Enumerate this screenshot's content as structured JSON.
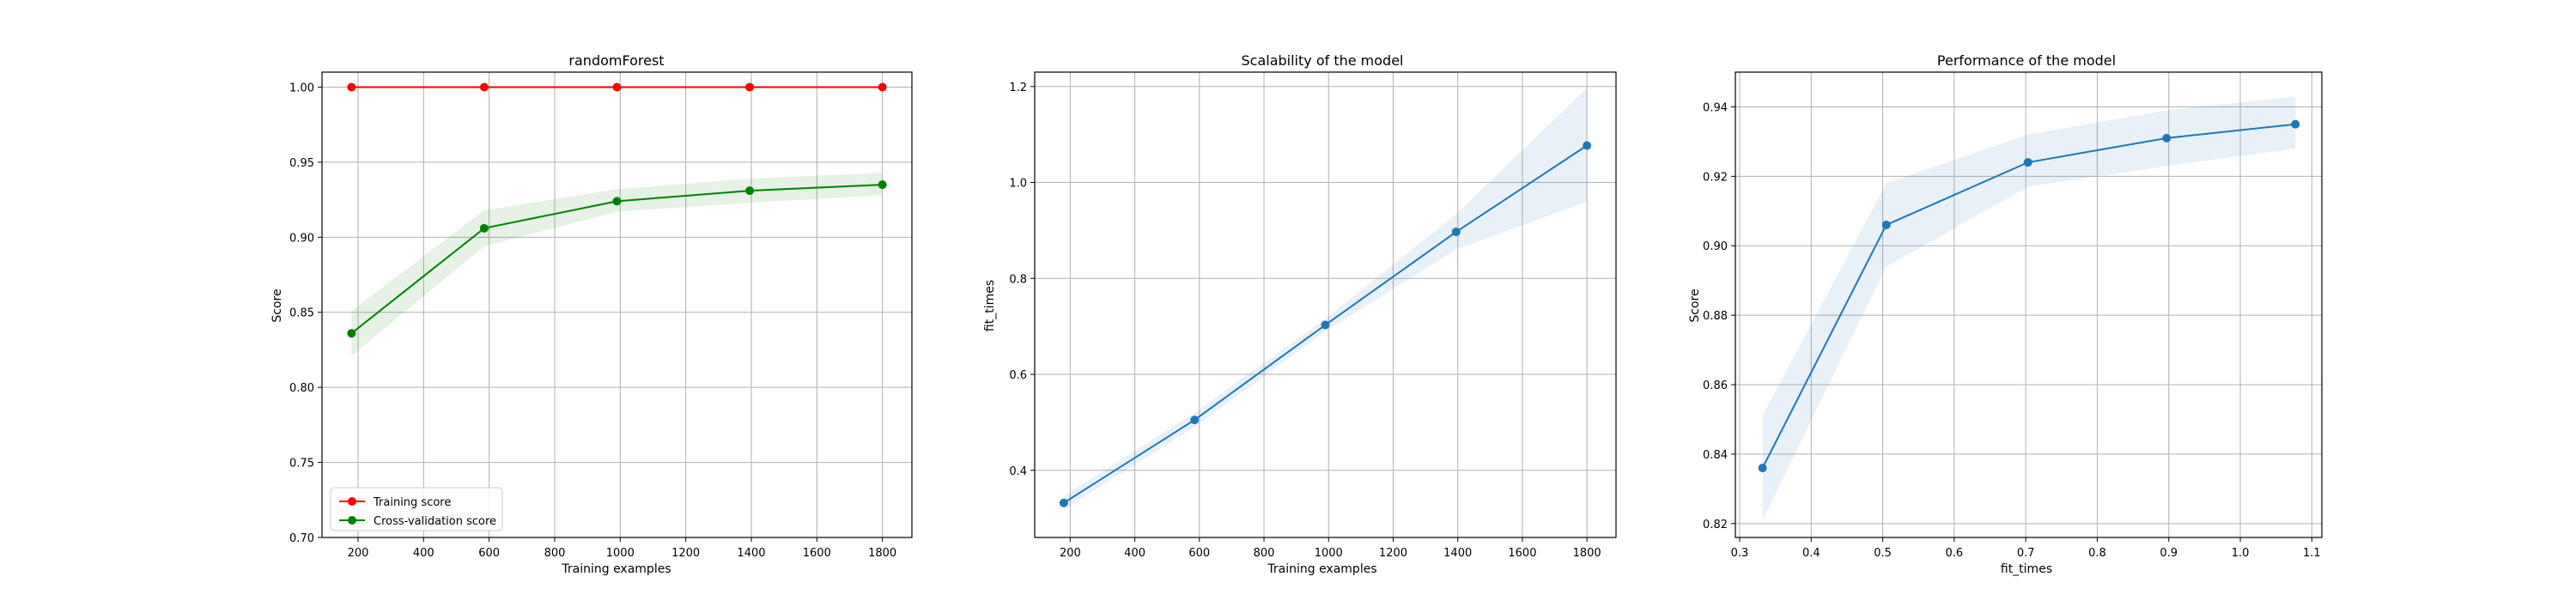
{
  "chart_data": [
    {
      "type": "line",
      "title": "randomForest",
      "xlabel": "Training examples",
      "ylabel": "Score",
      "xlim": [
        90,
        1890
      ],
      "ylim": [
        0.7,
        1.01
      ],
      "xticks": [
        200,
        400,
        600,
        800,
        1000,
        1200,
        1400,
        1600,
        1800
      ],
      "xtick_labels": [
        "200",
        "400",
        "600",
        "800",
        "1000",
        "1200",
        "1400",
        "1600",
        "1800"
      ],
      "yticks": [
        0.7,
        0.75,
        0.8,
        0.85,
        0.9,
        0.95,
        1.0
      ],
      "ytick_labels": [
        "0.70",
        "0.75",
        "0.80",
        "0.85",
        "0.90",
        "0.95",
        "1.00"
      ],
      "grid": true,
      "legend_position": "lower-left",
      "x": [
        180,
        585,
        990,
        1395,
        1800
      ],
      "series": [
        {
          "name": "Training score",
          "color": "#ff0000",
          "values": [
            1.0,
            1.0,
            1.0,
            1.0,
            1.0
          ],
          "lower": [
            1.0,
            1.0,
            1.0,
            1.0,
            1.0
          ],
          "upper": [
            1.0,
            1.0,
            1.0,
            1.0,
            1.0
          ]
        },
        {
          "name": "Cross-validation score",
          "color": "#008000",
          "values": [
            0.836,
            0.906,
            0.924,
            0.931,
            0.935
          ],
          "lower": [
            0.821,
            0.894,
            0.917,
            0.923,
            0.928
          ],
          "upper": [
            0.851,
            0.918,
            0.932,
            0.939,
            0.943
          ]
        }
      ]
    },
    {
      "type": "line",
      "title": "Scalability of the model",
      "xlabel": "Training examples",
      "ylabel": "fit_times",
      "xlim": [
        90,
        1890
      ],
      "ylim": [
        0.26,
        1.23
      ],
      "xticks": [
        200,
        400,
        600,
        800,
        1000,
        1200,
        1400,
        1600,
        1800
      ],
      "xtick_labels": [
        "200",
        "400",
        "600",
        "800",
        "1000",
        "1200",
        "1400",
        "1600",
        "1800"
      ],
      "yticks": [
        0.4,
        0.6,
        0.8,
        1.0,
        1.2
      ],
      "ytick_labels": [
        "0.4",
        "0.6",
        "0.8",
        "1.0",
        "1.2"
      ],
      "grid": true,
      "x": [
        180,
        585,
        990,
        1395,
        1800
      ],
      "series": [
        {
          "color": "#1f77b4",
          "values": [
            0.332,
            0.505,
            0.703,
            0.897,
            1.077
          ],
          "lower": [
            0.318,
            0.49,
            0.69,
            0.86,
            0.96
          ],
          "upper": [
            0.346,
            0.52,
            0.716,
            0.934,
            1.197
          ]
        }
      ]
    },
    {
      "type": "line",
      "title": "Performance of the model",
      "xlabel": "fit_times",
      "ylabel": "Score",
      "xlim": [
        0.294,
        1.114
      ],
      "ylim": [
        0.816,
        0.95
      ],
      "xticks": [
        0.3,
        0.4,
        0.5,
        0.6,
        0.7,
        0.8,
        0.9,
        1.0,
        1.1
      ],
      "xtick_labels": [
        "0.3",
        "0.4",
        "0.5",
        "0.6",
        "0.7",
        "0.8",
        "0.9",
        "1.0",
        "1.1"
      ],
      "yticks": [
        0.82,
        0.84,
        0.86,
        0.88,
        0.9,
        0.92,
        0.94
      ],
      "ytick_labels": [
        "0.82",
        "0.84",
        "0.86",
        "0.88",
        "0.90",
        "0.92",
        "0.94"
      ],
      "grid": true,
      "x": [
        0.332,
        0.505,
        0.703,
        0.897,
        1.077
      ],
      "series": [
        {
          "color": "#1f77b4",
          "values": [
            0.836,
            0.906,
            0.924,
            0.931,
            0.935
          ],
          "lower": [
            0.821,
            0.894,
            0.917,
            0.923,
            0.928
          ],
          "upper": [
            0.851,
            0.918,
            0.932,
            0.939,
            0.943
          ]
        }
      ]
    }
  ]
}
